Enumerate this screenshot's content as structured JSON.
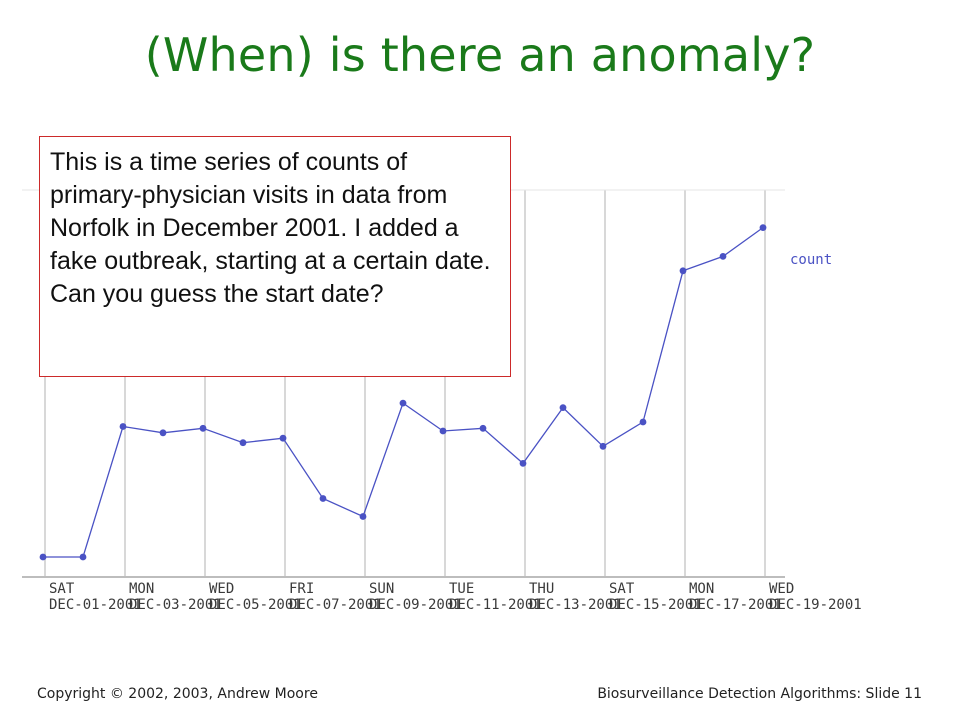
{
  "slide": {
    "title": "(When) is there an anomaly?",
    "callout_text": "This is a time series of counts of primary-physician visits in data from Norfolk in December 2001. I added a fake outbreak, starting at a certain date. Can you guess the start date?"
  },
  "footer": {
    "left": "Copyright © 2002, 2003, Andrew  Moore",
    "right": "Biosurveillance Detection Algorithms: Slide 11"
  },
  "colors": {
    "title": "#1a7a1a",
    "series": "#4a52c4",
    "callout_border": "#cc2a2a"
  },
  "chart_data": {
    "type": "line",
    "series": [
      {
        "name": "count",
        "values": [
          2,
          2,
          16.5,
          15.8,
          16.3,
          14.7,
          15.2,
          8.5,
          6.5,
          19.1,
          16.0,
          16.3,
          12.4,
          18.6,
          14.3,
          17.0,
          33.8,
          35.4,
          38.6
        ]
      }
    ],
    "ylim": [
      0,
      45
    ],
    "x_tick_days": [
      "SAT",
      "MON",
      "WED",
      "FRI",
      "SUN",
      "TUE",
      "THU",
      "SAT",
      "MON",
      "WED"
    ],
    "x_tick_dates": [
      "DEC-01-2001",
      "DEC-03-2001",
      "DEC-05-2001",
      "DEC-07-2001",
      "DEC-09-2001",
      "DEC-11-2001",
      "DEC-13-2001",
      "DEC-15-2001",
      "DEC-17-2001",
      "DEC-19-2001"
    ],
    "grid": true,
    "legend": "top-right"
  }
}
